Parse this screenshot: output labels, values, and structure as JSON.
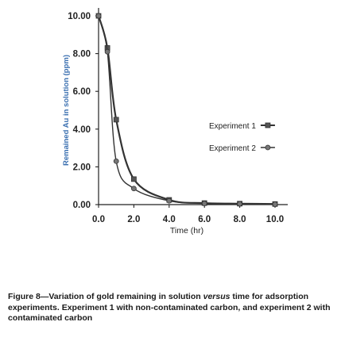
{
  "chart_data": {
    "type": "line",
    "xlabel": "Time (hr)",
    "ylabel": "Remained Au in solution (ppm)",
    "xlim": [
      0,
      10
    ],
    "ylim": [
      0,
      10
    ],
    "x_ticks": [
      "0.0",
      "2.0",
      "4.0",
      "6.0",
      "8.0",
      "10.0"
    ],
    "y_ticks": [
      "0.00",
      "2.00",
      "4.00",
      "6.00",
      "8.00",
      "10.00"
    ],
    "legend_position": "center-right",
    "series": [
      {
        "name": "Experiment 1",
        "x": [
          0.0,
          0.5,
          1.0,
          2.0,
          4.0,
          6.0,
          8.0,
          10.0
        ],
        "y": [
          10.0,
          8.3,
          4.5,
          1.35,
          0.25,
          0.08,
          0.05,
          0.03
        ]
      },
      {
        "name": "Experiment 2",
        "x": [
          0.0,
          0.5,
          1.0,
          2.0,
          4.0,
          6.0,
          8.0,
          10.0
        ],
        "y": [
          10.0,
          8.1,
          2.3,
          0.85,
          0.2,
          0.06,
          0.04,
          0.02
        ]
      }
    ]
  },
  "caption": {
    "label": "Figure 8",
    "text_a": "—Variation of gold remaining in solution ",
    "text_italic": "versus",
    "text_b": " time for adsorption experiments. Experiment 1 with non-contaminated carbon, and experiment 2 with contaminated carbon"
  }
}
